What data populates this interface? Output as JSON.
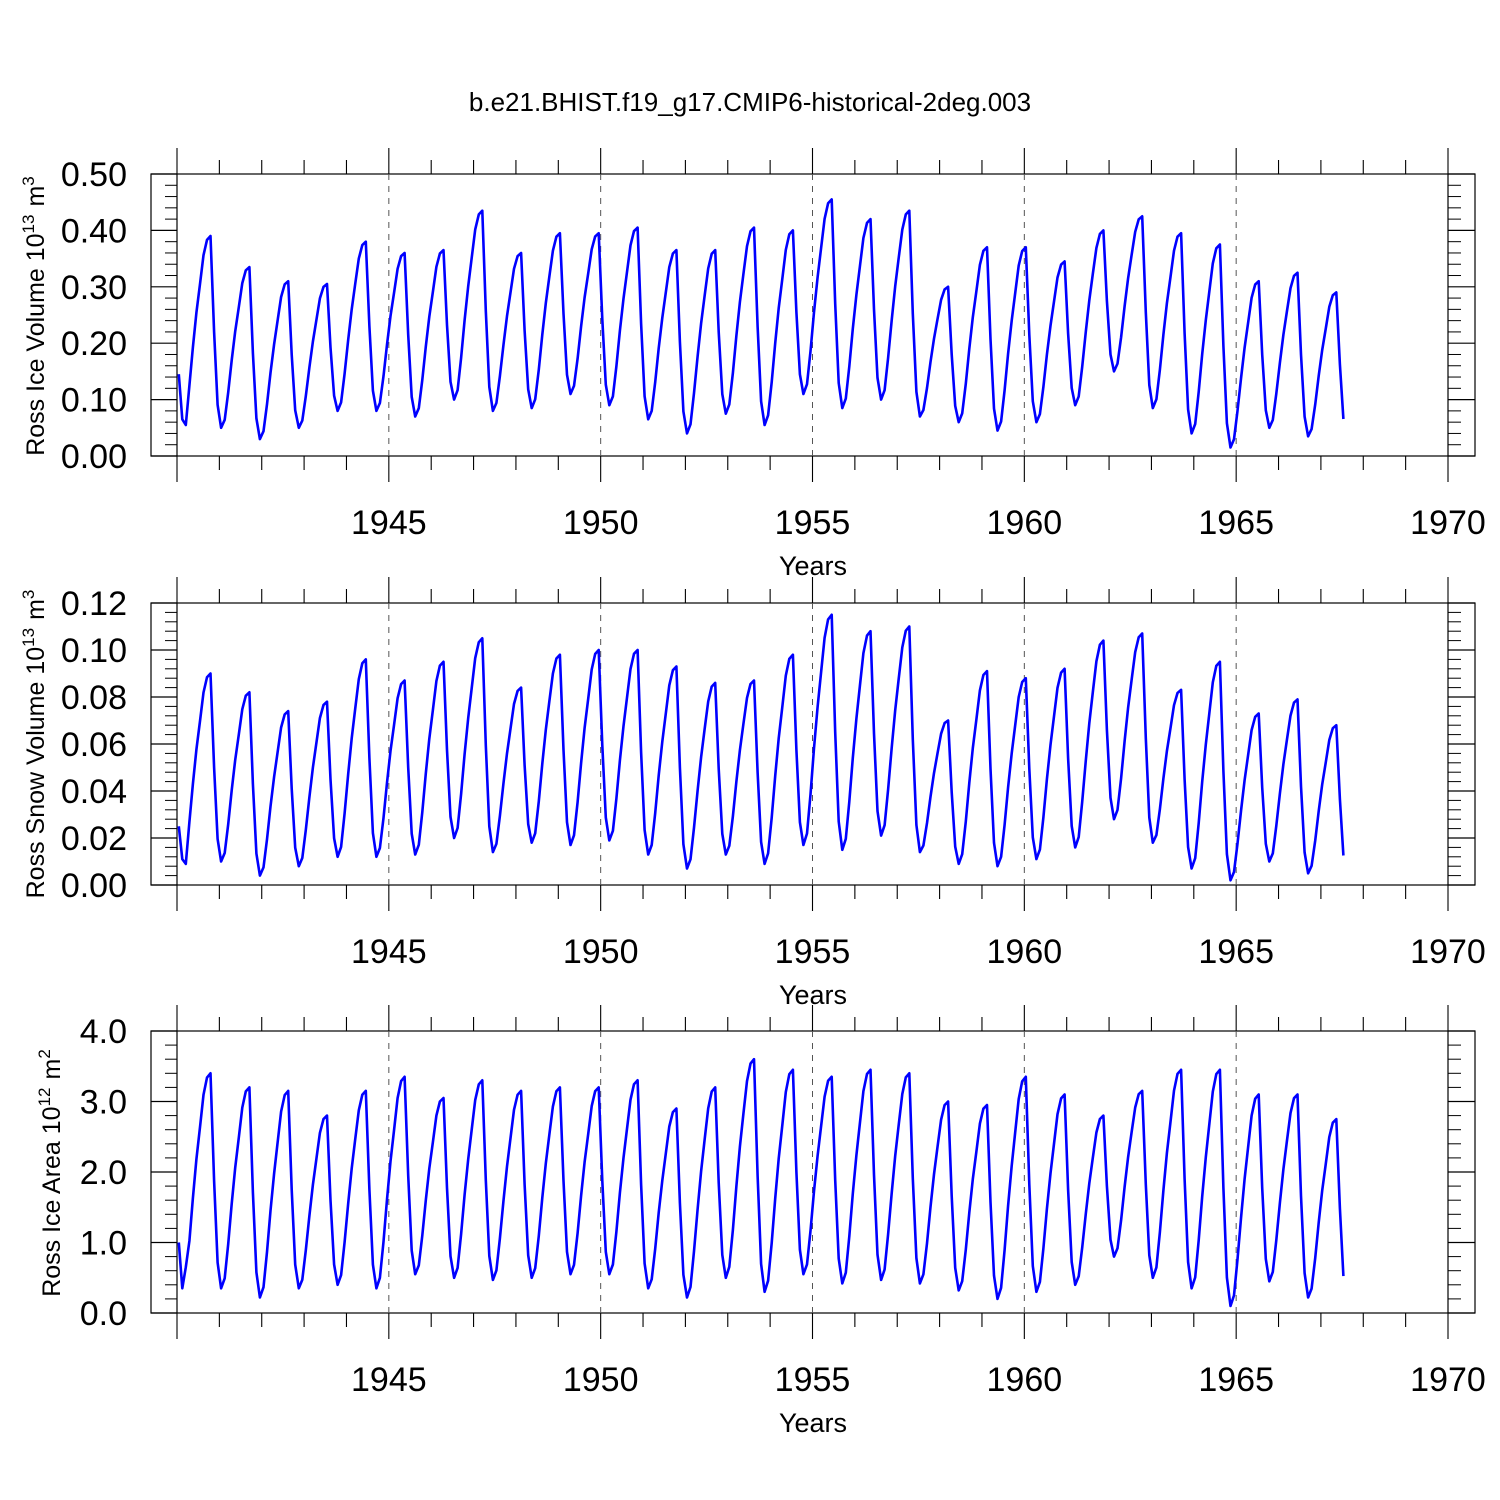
{
  "title": "b.e21.BHIST.f19_g17.CMIP6-historical-2deg.003",
  "chart_data": [
    {
      "type": "line",
      "xlabel": "Years",
      "ylabel": "Ross Ice Volume 10",
      "ylabel_exp": "13",
      "ylabel_unit": "m",
      "ylabel_unit_exp": "3",
      "xlim": [
        1940.0,
        1970.0
      ],
      "ylim": [
        0.0,
        0.5
      ],
      "xticks": [
        1945,
        1950,
        1955,
        1960,
        1965,
        1970
      ],
      "yticks": [
        "0.00",
        "0.10",
        "0.20",
        "0.30",
        "0.40",
        "0.50"
      ],
      "grid": "dashed vertical lines at 5-year marks",
      "color": "#0000ff",
      "series": [
        {
          "name": "Ross Ice Volume",
          "x_start": 1940.042,
          "step": 0.0833,
          "peaks": [
            0.39,
            0.335,
            0.31,
            0.305,
            0.38,
            0.36,
            0.365,
            0.435,
            0.36,
            0.395,
            0.395,
            0.405,
            0.365,
            0.365,
            0.405,
            0.4,
            0.455,
            0.42,
            0.435,
            0.3,
            0.37,
            0.37,
            0.345,
            0.4,
            0.425,
            0.395,
            0.375,
            0.31,
            0.325,
            0.29
          ],
          "troughs": [
            0.05,
            0.05,
            0.03,
            0.05,
            0.08,
            0.08,
            0.07,
            0.1,
            0.08,
            0.085,
            0.11,
            0.09,
            0.065,
            0.04,
            0.075,
            0.055,
            0.11,
            0.085,
            0.1,
            0.07,
            0.06,
            0.045,
            0.06,
            0.09,
            0.15,
            0.085,
            0.04,
            0.015,
            0.05,
            0.035
          ],
          "values": [
            0.145,
            0.065,
            0.055
          ]
        }
      ]
    },
    {
      "type": "line",
      "xlabel": "Years",
      "ylabel": "Ross Snow Volume 10",
      "ylabel_exp": "13",
      "ylabel_unit": "m",
      "ylabel_unit_exp": "3",
      "xlim": [
        1940.0,
        1970.0
      ],
      "ylim": [
        0.0,
        0.12
      ],
      "xticks": [
        1945,
        1950,
        1955,
        1960,
        1965,
        1970
      ],
      "yticks": [
        "0.00",
        "0.02",
        "0.04",
        "0.06",
        "0.08",
        "0.10",
        "0.12"
      ],
      "grid": "dashed vertical lines at 5-year marks",
      "color": "#0000ff",
      "series": [
        {
          "name": "Ross Snow Volume",
          "x_start": 1940.042,
          "step": 0.0833,
          "peaks": [
            0.09,
            0.082,
            0.074,
            0.078,
            0.096,
            0.087,
            0.095,
            0.105,
            0.084,
            0.098,
            0.1,
            0.1,
            0.093,
            0.086,
            0.087,
            0.098,
            0.115,
            0.108,
            0.11,
            0.07,
            0.091,
            0.088,
            0.092,
            0.104,
            0.107,
            0.083,
            0.095,
            0.073,
            0.079,
            0.068
          ],
          "troughs": [
            0.009,
            0.01,
            0.004,
            0.008,
            0.012,
            0.012,
            0.013,
            0.02,
            0.014,
            0.018,
            0.017,
            0.019,
            0.013,
            0.007,
            0.013,
            0.009,
            0.017,
            0.015,
            0.021,
            0.014,
            0.009,
            0.008,
            0.011,
            0.016,
            0.028,
            0.018,
            0.007,
            0.002,
            0.01,
            0.005
          ],
          "values": [
            0.025,
            0.011,
            0.009
          ]
        }
      ]
    },
    {
      "type": "line",
      "xlabel": "Years",
      "ylabel": "Ross Ice Area 10",
      "ylabel_exp": "12",
      "ylabel_unit": "m",
      "ylabel_unit_exp": "2",
      "xlim": [
        1940.0,
        1970.0
      ],
      "ylim": [
        0.0,
        4.0
      ],
      "xticks": [
        1945,
        1950,
        1955,
        1960,
        1965,
        1970
      ],
      "yticks": [
        "0.0",
        "1.0",
        "2.0",
        "3.0",
        "4.0"
      ],
      "grid": "dashed vertical lines at 5-year marks",
      "color": "#0000ff",
      "series": [
        {
          "name": "Ross Ice Area",
          "x_start": 1940.042,
          "step": 0.0833,
          "peaks": [
            3.4,
            3.2,
            3.15,
            2.8,
            3.15,
            3.35,
            3.05,
            3.3,
            3.15,
            3.2,
            3.2,
            3.3,
            2.9,
            3.2,
            3.6,
            3.45,
            3.35,
            3.45,
            3.4,
            3.0,
            2.95,
            3.35,
            3.1,
            2.8,
            3.15,
            3.45,
            3.45,
            3.1,
            3.1,
            2.75
          ],
          "troughs": [
            0.35,
            0.35,
            0.22,
            0.35,
            0.4,
            0.35,
            0.55,
            0.5,
            0.47,
            0.5,
            0.55,
            0.55,
            0.35,
            0.22,
            0.5,
            0.3,
            0.55,
            0.42,
            0.47,
            0.42,
            0.32,
            0.2,
            0.3,
            0.4,
            0.8,
            0.5,
            0.35,
            0.1,
            0.45,
            0.22
          ],
          "values": [
            1.0,
            0.35,
            0.65
          ]
        }
      ]
    }
  ]
}
